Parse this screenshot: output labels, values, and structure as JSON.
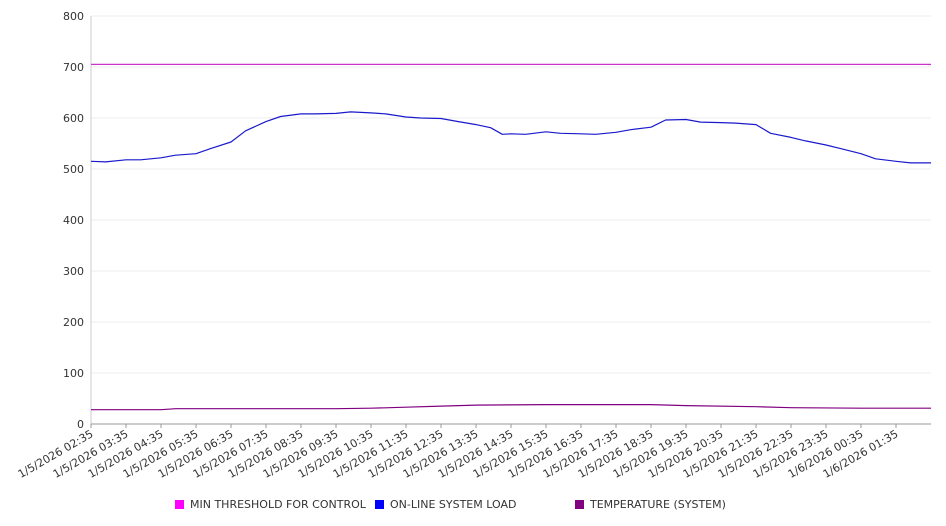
{
  "chart_data": {
    "type": "line",
    "ylim": [
      0,
      800
    ],
    "yticks": [
      0,
      100,
      200,
      300,
      400,
      500,
      600,
      700,
      800
    ],
    "xlim": [
      "1/5/2026 02:35",
      "1/6/2026 02:35"
    ],
    "xticks": [
      "1/5/2026 02:35",
      "1/5/2026 03:35",
      "1/5/2026 04:35",
      "1/5/2026 05:35",
      "1/5/2026 06:35",
      "1/5/2026 07:35",
      "1/5/2026 08:35",
      "1/5/2026 09:35",
      "1/5/2026 10:35",
      "1/5/2026 11:35",
      "1/5/2026 12:35",
      "1/5/2026 13:35",
      "1/5/2026 14:35",
      "1/5/2026 15:35",
      "1/5/2026 16:35",
      "1/5/2026 17:35",
      "1/5/2026 18:35",
      "1/5/2026 19:35",
      "1/5/2026 20:35",
      "1/5/2026 21:35",
      "1/5/2026 22:35",
      "1/5/2026 23:35",
      "1/6/2026 00:35",
      "1/6/2026 01:35"
    ],
    "grid": true,
    "legend_position": "bottom",
    "series": [
      {
        "name": "MIN THRESHOLD FOR CONTROL",
        "color": "#cc33cc",
        "swatch": "#ff00ff",
        "points": [
          [
            "1/5/2026 02:35",
            705
          ],
          [
            "1/6/2026 02:35",
            705
          ]
        ]
      },
      {
        "name": "ON-LINE SYSTEM LOAD",
        "color": "#1a1acc",
        "swatch": "#0000ff",
        "points": [
          [
            "1/5/2026 02:35",
            515
          ],
          [
            "1/5/2026 03:00",
            514
          ],
          [
            "1/5/2026 03:35",
            518
          ],
          [
            "1/5/2026 04:00",
            518
          ],
          [
            "1/5/2026 04:35",
            522
          ],
          [
            "1/5/2026 05:00",
            527
          ],
          [
            "1/5/2026 05:35",
            530
          ],
          [
            "1/5/2026 06:00",
            540
          ],
          [
            "1/5/2026 06:35",
            553
          ],
          [
            "1/5/2026 07:00",
            575
          ],
          [
            "1/5/2026 07:35",
            593
          ],
          [
            "1/5/2026 08:00",
            603
          ],
          [
            "1/5/2026 08:35",
            608
          ],
          [
            "1/5/2026 09:00",
            608
          ],
          [
            "1/5/2026 09:35",
            609
          ],
          [
            "1/5/2026 10:00",
            612
          ],
          [
            "1/5/2026 10:35",
            610
          ],
          [
            "1/5/2026 11:00",
            608
          ],
          [
            "1/5/2026 11:35",
            602
          ],
          [
            "1/5/2026 12:00",
            600
          ],
          [
            "1/5/2026 12:35",
            599
          ],
          [
            "1/5/2026 13:00",
            594
          ],
          [
            "1/5/2026 13:35",
            587
          ],
          [
            "1/5/2026 14:00",
            581
          ],
          [
            "1/5/2026 14:20",
            568
          ],
          [
            "1/5/2026 14:35",
            569
          ],
          [
            "1/5/2026 15:00",
            568
          ],
          [
            "1/5/2026 15:35",
            573
          ],
          [
            "1/5/2026 16:00",
            570
          ],
          [
            "1/5/2026 16:35",
            569
          ],
          [
            "1/5/2026 17:00",
            568
          ],
          [
            "1/5/2026 17:35",
            572
          ],
          [
            "1/5/2026 18:00",
            577
          ],
          [
            "1/5/2026 18:35",
            582
          ],
          [
            "1/5/2026 19:00",
            596
          ],
          [
            "1/5/2026 19:35",
            597
          ],
          [
            "1/5/2026 20:00",
            592
          ],
          [
            "1/5/2026 20:35",
            591
          ],
          [
            "1/5/2026 21:00",
            590
          ],
          [
            "1/5/2026 21:35",
            587
          ],
          [
            "1/5/2026 22:00",
            570
          ],
          [
            "1/5/2026 22:35",
            562
          ],
          [
            "1/5/2026 23:00",
            555
          ],
          [
            "1/5/2026 23:35",
            547
          ],
          [
            "1/6/2026 00:00",
            540
          ],
          [
            "1/6/2026 00:35",
            530
          ],
          [
            "1/6/2026 01:00",
            520
          ],
          [
            "1/6/2026 01:35",
            515
          ],
          [
            "1/6/2026 02:00",
            512
          ],
          [
            "1/6/2026 02:35",
            512
          ]
        ]
      },
      {
        "name": "TEMPERATURE (SYSTEM)",
        "color": "#800080",
        "swatch": "#800080",
        "points": [
          [
            "1/5/2026 02:35",
            28
          ],
          [
            "1/5/2026 04:35",
            28
          ],
          [
            "1/5/2026 05:00",
            30
          ],
          [
            "1/5/2026 09:35",
            30
          ],
          [
            "1/5/2026 10:35",
            31
          ],
          [
            "1/5/2026 11:35",
            33
          ],
          [
            "1/5/2026 12:35",
            35
          ],
          [
            "1/5/2026 13:35",
            37
          ],
          [
            "1/5/2026 15:35",
            38
          ],
          [
            "1/5/2026 18:35",
            38
          ],
          [
            "1/5/2026 19:35",
            36
          ],
          [
            "1/5/2026 21:35",
            34
          ],
          [
            "1/5/2026 22:35",
            32
          ],
          [
            "1/6/2026 00:35",
            31
          ],
          [
            "1/6/2026 02:35",
            31
          ]
        ]
      }
    ]
  }
}
